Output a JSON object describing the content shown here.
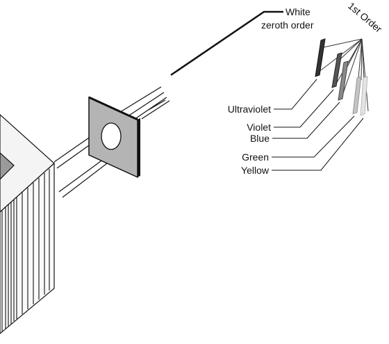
{
  "labels": {
    "white": "White",
    "zeroth": "zeroth order",
    "first_order": "1st Order",
    "ultraviolet": "Ultraviolet",
    "violet": "Violet",
    "blue": "Blue",
    "green": "Green",
    "yellow": "Yellow"
  },
  "colors": {
    "ultraviolet_band": "#333333",
    "violet_band": "#555555",
    "blue_band": "#8a8a8a",
    "green_band": "#c4c4c4",
    "yellow_band": "#e4e4e4",
    "slit_plate": "#b4b4b4",
    "lamp_housing": "#f2f2f2"
  }
}
